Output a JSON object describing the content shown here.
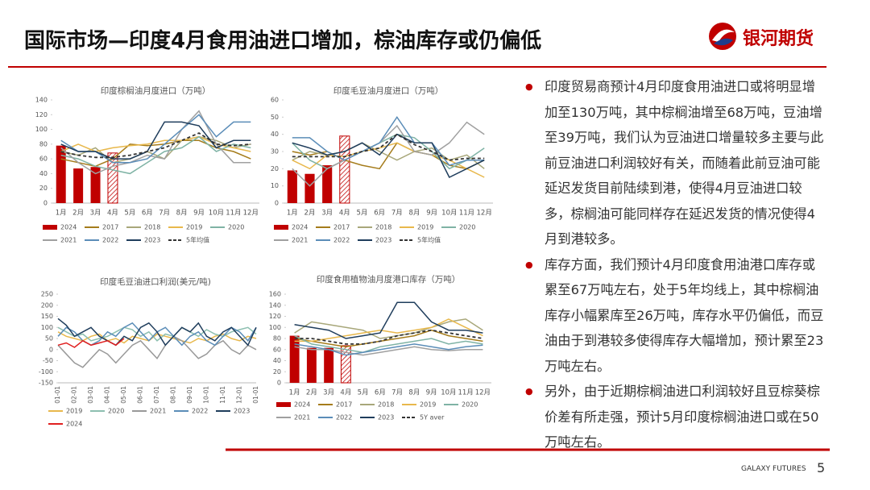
{
  "header": {
    "title": "国际市场—印度4月食用油进口增加，棕油库存或仍偏低",
    "logo_text": "银河期货"
  },
  "bullets": [
    "印度贸易商预计4月印度食用油进口或将明显增加至130万吨，其中棕榈油增至68万吨，豆油增至39万吨，我们认为豆油进口增量较多主要与此前豆油进口利润较好有关，而随着此前豆油可能延迟发货目前陆续到港，使得4月豆油进口较多，棕榈油可能同样存在延迟发货的情况使得4月到港较多。",
    "库存方面，我们预计4月印度食用油港口库存或累至67万吨左右，处于5年均线上，其中棕榈油库存小幅累库至26万吨，库存水平仍偏低，而豆油由于到港较多使得库存大幅增加，预计累至23万吨左右。",
    "另外，由于近期棕榈油进口利润较好且豆棕葵棕价差有所走强，预计5月印度棕榈油进口或在50万吨左右。"
  ],
  "footer": {
    "brand": "GALAXY FUTURES",
    "page_number": "5"
  },
  "chart_data": [
    {
      "type": "bar_line",
      "title": "印度棕榈油月度进口（万吨）",
      "categories": [
        "1月",
        "2月",
        "3月",
        "4月",
        "5月",
        "6月",
        "7月",
        "8月",
        "9月",
        "10月",
        "11月",
        "12月"
      ],
      "ylim": [
        0,
        140
      ],
      "yticks": [
        0,
        20,
        40,
        60,
        80,
        100,
        120,
        140
      ],
      "series": [
        {
          "name": "2024",
          "kind": "bar",
          "color": "#C00000",
          "values": [
            78,
            47,
            49,
            68,
            null,
            null,
            null,
            null,
            null,
            null,
            null,
            null
          ],
          "hatched": [
            3
          ]
        },
        {
          "name": "2017",
          "kind": "line",
          "color": "#A57C1B",
          "values": [
            60,
            55,
            50,
            60,
            80,
            78,
            80,
            85,
            85,
            75,
            70,
            60
          ]
        },
        {
          "name": "2018",
          "kind": "line",
          "color": "#A8A77A",
          "values": [
            70,
            65,
            75,
            55,
            60,
            70,
            60,
            85,
            90,
            85,
            75,
            80
          ]
        },
        {
          "name": "2019",
          "kind": "line",
          "color": "#E8B84C",
          "values": [
            70,
            80,
            70,
            75,
            78,
            80,
            85,
            85,
            90,
            80,
            75,
            70
          ]
        },
        {
          "name": "2020",
          "kind": "line",
          "color": "#7FB3A5",
          "values": [
            65,
            60,
            50,
            45,
            40,
            55,
            70,
            75,
            90,
            70,
            80,
            75
          ]
        },
        {
          "name": "2021",
          "kind": "line",
          "color": "#A0A0A0",
          "values": [
            75,
            55,
            40,
            50,
            55,
            65,
            60,
            100,
            125,
            80,
            55,
            55
          ]
        },
        {
          "name": "2022",
          "kind": "line",
          "color": "#5B8DB8",
          "values": [
            85,
            70,
            70,
            55,
            55,
            60,
            80,
            100,
            120,
            90,
            110,
            110
          ]
        },
        {
          "name": "2023",
          "kind": "line",
          "color": "#1F3D5C",
          "values": [
            80,
            70,
            70,
            60,
            60,
            70,
            110,
            110,
            105,
            75,
            85,
            85
          ]
        },
        {
          "name": "5年均值",
          "kind": "line",
          "dash": true,
          "color": "#333333",
          "values": [
            70,
            65,
            62,
            62,
            65,
            70,
            75,
            85,
            95,
            80,
            78,
            80
          ]
        }
      ]
    },
    {
      "type": "bar_line",
      "title": "印度毛豆油月度进口（万吨）",
      "categories": [
        "1月",
        "2月",
        "3月",
        "4月",
        "5月",
        "6月",
        "7月",
        "8月",
        "9月",
        "10月",
        "11月",
        "12月"
      ],
      "ylim": [
        0,
        60
      ],
      "yticks": [
        0,
        10,
        20,
        30,
        40,
        50,
        60
      ],
      "series": [
        {
          "name": "2024",
          "kind": "bar",
          "color": "#C00000",
          "values": [
            19,
            17,
            22,
            39,
            null,
            null,
            null,
            null,
            null,
            null,
            null,
            null
          ],
          "hatched": [
            3
          ]
        },
        {
          "name": "2017",
          "kind": "line",
          "color": "#A57C1B",
          "values": [
            30,
            28,
            30,
            25,
            22,
            20,
            35,
            30,
            28,
            22,
            20,
            25
          ]
        },
        {
          "name": "2018",
          "kind": "line",
          "color": "#A8A77A",
          "values": [
            25,
            30,
            28,
            30,
            35,
            30,
            25,
            30,
            32,
            25,
            28,
            20
          ]
        },
        {
          "name": "2019",
          "kind": "line",
          "color": "#E8B84C",
          "values": [
            25,
            20,
            28,
            27,
            30,
            32,
            35,
            30,
            28,
            25,
            20,
            15
          ]
        },
        {
          "name": "2020",
          "kind": "line",
          "color": "#7FB3A5",
          "values": [
            35,
            25,
            20,
            25,
            30,
            35,
            40,
            38,
            30,
            20,
            25,
            32
          ]
        },
        {
          "name": "2021",
          "kind": "line",
          "color": "#A0A0A0",
          "values": [
            20,
            10,
            20,
            25,
            30,
            35,
            45,
            30,
            28,
            35,
            47,
            40
          ]
        },
        {
          "name": "2022",
          "kind": "line",
          "color": "#5B8DB8",
          "values": [
            38,
            38,
            30,
            25,
            30,
            35,
            50,
            35,
            35,
            22,
            25,
            25
          ]
        },
        {
          "name": "2023",
          "kind": "line",
          "color": "#1F3D5C",
          "values": [
            35,
            32,
            28,
            30,
            35,
            28,
            40,
            35,
            35,
            15,
            20,
            25
          ]
        },
        {
          "name": "5年均值",
          "kind": "line",
          "dash": true,
          "color": "#333333",
          "values": [
            27,
            27,
            27,
            27,
            30,
            32,
            40,
            34,
            30,
            25,
            26,
            26
          ]
        }
      ]
    },
    {
      "type": "line",
      "title": "印度毛豆油进口利润(美元/吨)",
      "categories": [
        "01-01",
        null,
        "02-01",
        null,
        "03-01",
        null,
        "04-01",
        null,
        "05-01",
        null,
        "06-01",
        null,
        "07-01",
        null,
        "08-01",
        null,
        "09-01",
        null,
        "10-01",
        null,
        "11-01",
        null,
        "12-01",
        null,
        "01-01"
      ],
      "ylim": [
        -150,
        250
      ],
      "yticks": [
        -150,
        -100,
        -50,
        0,
        50,
        100,
        150,
        200,
        250
      ],
      "series": [
        {
          "name": "2019",
          "color": "#E8B84C",
          "values": [
            80,
            60,
            50,
            40,
            60,
            70,
            40,
            50,
            30,
            60,
            50,
            40,
            70,
            60,
            50,
            40,
            30,
            50,
            40,
            60,
            70,
            50,
            40,
            60,
            50
          ]
        },
        {
          "name": "2020",
          "color": "#8DBFB0",
          "values": [
            100,
            80,
            60,
            70,
            40,
            50,
            60,
            80,
            100,
            90,
            60,
            80,
            40,
            70,
            60,
            100,
            80,
            60,
            90,
            70,
            60,
            80,
            90,
            100,
            70
          ]
        },
        {
          "name": "2021",
          "color": "#999999",
          "values": [
            20,
            -20,
            -60,
            -80,
            -40,
            0,
            -20,
            -60,
            -20,
            20,
            40,
            0,
            -40,
            20,
            60,
            40,
            0,
            -40,
            -20,
            20,
            40,
            0,
            -20,
            20,
            0
          ]
        },
        {
          "name": "2022",
          "color": "#5B8DB8",
          "values": [
            60,
            100,
            80,
            40,
            20,
            40,
            80,
            60,
            100,
            120,
            80,
            40,
            80,
            100,
            60,
            20,
            60,
            80,
            40,
            20,
            60,
            100,
            80,
            40,
            100
          ]
        },
        {
          "name": "2023",
          "color": "#1F3D5C",
          "values": [
            140,
            110,
            60,
            80,
            100,
            60,
            40,
            20,
            60,
            40,
            100,
            120,
            80,
            20,
            60,
            100,
            80,
            120,
            60,
            40,
            80,
            100,
            60,
            20,
            100
          ]
        },
        {
          "name": "2024",
          "color": "#E02020",
          "values": [
            20,
            30,
            10,
            40,
            20,
            30,
            40,
            20,
            50,
            null,
            null,
            null,
            null,
            null,
            null,
            null,
            null,
            null,
            null,
            null,
            null,
            null,
            null,
            null,
            null
          ]
        }
      ]
    },
    {
      "type": "bar_line",
      "title": "印度食用植物油月度港口库存（万吨）",
      "categories": [
        "1月",
        "2月",
        "3月",
        "4月",
        "5月",
        "6月",
        "7月",
        "8月",
        "9月",
        "10月",
        "11月",
        "12月"
      ],
      "ylim": [
        0,
        160
      ],
      "yticks": [
        0,
        20,
        40,
        60,
        80,
        100,
        120,
        140,
        160
      ],
      "series": [
        {
          "name": "2024",
          "kind": "bar",
          "color": "#C00000",
          "values": [
            85,
            63,
            63,
            67,
            null,
            null,
            null,
            null,
            null,
            null,
            null,
            null
          ],
          "hatched": [
            3
          ]
        },
        {
          "name": "2017",
          "kind": "line",
          "color": "#A57C1B",
          "values": [
            80,
            75,
            70,
            65,
            70,
            75,
            80,
            85,
            95,
            85,
            80,
            75
          ]
        },
        {
          "name": "2018",
          "kind": "line",
          "color": "#A8A77A",
          "values": [
            90,
            110,
            105,
            100,
            95,
            80,
            85,
            90,
            100,
            110,
            115,
            95
          ]
        },
        {
          "name": "2019",
          "kind": "line",
          "color": "#E8B84C",
          "values": [
            75,
            75,
            80,
            85,
            90,
            95,
            90,
            95,
            100,
            115,
            100,
            85
          ]
        },
        {
          "name": "2020",
          "kind": "line",
          "color": "#7FB3A5",
          "values": [
            85,
            70,
            65,
            60,
            55,
            65,
            70,
            75,
            80,
            70,
            75,
            70
          ]
        },
        {
          "name": "2021",
          "kind": "line",
          "color": "#A0A0A0",
          "values": [
            65,
            60,
            60,
            55,
            50,
            55,
            60,
            65,
            60,
            58,
            60,
            60
          ]
        },
        {
          "name": "2022",
          "kind": "line",
          "color": "#5B8DB8",
          "values": [
            70,
            65,
            60,
            50,
            55,
            60,
            65,
            70,
            65,
            60,
            65,
            68
          ]
        },
        {
          "name": "2023",
          "kind": "line",
          "color": "#1F3D5C",
          "values": [
            105,
            100,
            95,
            80,
            85,
            90,
            145,
            145,
            110,
            95,
            95,
            90
          ]
        },
        {
          "name": "5Y aver",
          "kind": "line",
          "dash": true,
          "color": "#333333",
          "values": [
            80,
            80,
            75,
            70,
            70,
            75,
            85,
            90,
            95,
            90,
            85,
            80
          ]
        }
      ]
    }
  ]
}
